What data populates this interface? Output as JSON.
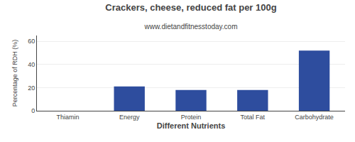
{
  "chart_data": {
    "type": "bar",
    "title": "Crackers, cheese, reduced fat per 100g",
    "subtitle": "www.dietandfitnesstoday.com",
    "xlabel": "Different Nutrients",
    "ylabel": "Percentage of RDH (%)",
    "categories": [
      "Thiamin",
      "Energy",
      "Protein",
      "Total Fat",
      "Carbohydrate"
    ],
    "values": [
      0,
      21,
      18,
      18,
      52
    ],
    "color": "#2e4d9e",
    "ylim": [
      0,
      65
    ],
    "yticks": [
      0,
      20,
      40,
      60
    ],
    "grid": true
  }
}
